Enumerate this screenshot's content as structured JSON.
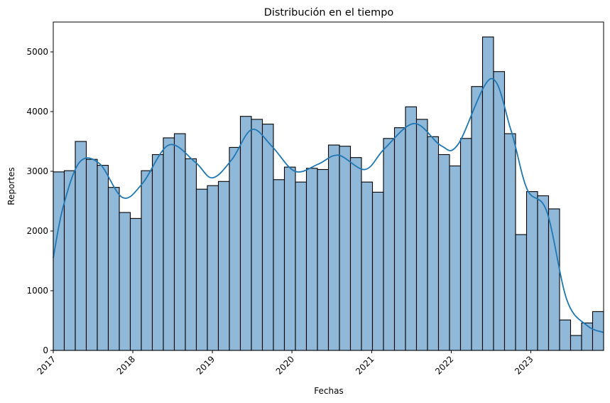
{
  "chart_data": {
    "type": "bar",
    "title": "Distribución en el tiempo",
    "xlabel": "Fechas",
    "ylabel": "Reportes",
    "x_ticks": [
      "2017",
      "2018",
      "2019",
      "2020",
      "2021",
      "2022",
      "2023"
    ],
    "y_ticks": [
      "0",
      "1000",
      "2000",
      "3000",
      "4000",
      "5000"
    ],
    "xlim": [
      "2017-01-01",
      "2023-12-01"
    ],
    "ylim": [
      0,
      5500
    ],
    "grid": false,
    "bin_count": 50,
    "series": [
      {
        "values": [
          2990,
          3010,
          3500,
          3200,
          3100,
          2730,
          2310,
          2210,
          3010,
          3280,
          3560,
          3630,
          3210,
          2700,
          2760,
          2830,
          3400,
          3920,
          3870,
          3790,
          2860,
          3070,
          2820,
          3050,
          3030,
          3440,
          3420,
          3230,
          2820,
          2650,
          3550,
          3730,
          4080,
          3870,
          3580,
          3280,
          3090,
          3550,
          4420,
          5250,
          4670,
          3630,
          1940,
          2660,
          2590,
          2370,
          510,
          250,
          460,
          650
        ]
      }
    ],
    "kde": {
      "x": [
        "2017-01-01",
        "2017-02-15",
        "2017-05-01",
        "2017-08-01",
        "2017-11-15",
        "2018-02-15",
        "2018-06-15",
        "2018-10-15",
        "2019-01-01",
        "2019-04-01",
        "2019-07-01",
        "2019-10-01",
        "2020-01-15",
        "2020-05-01",
        "2020-08-01",
        "2020-12-01",
        "2021-03-01",
        "2021-07-15",
        "2021-11-15",
        "2022-02-01",
        "2022-07-01",
        "2022-10-01",
        "2022-12-15",
        "2023-03-15",
        "2023-06-15",
        "2023-09-15",
        "2023-12-01"
      ],
      "values": [
        1550,
        2400,
        3150,
        3130,
        2560,
        2800,
        3440,
        3150,
        2890,
        3200,
        3700,
        3420,
        3000,
        3120,
        3270,
        3030,
        3380,
        3800,
        3430,
        3450,
        4550,
        3700,
        2700,
        2330,
        850,
        420,
        300
      ]
    }
  }
}
